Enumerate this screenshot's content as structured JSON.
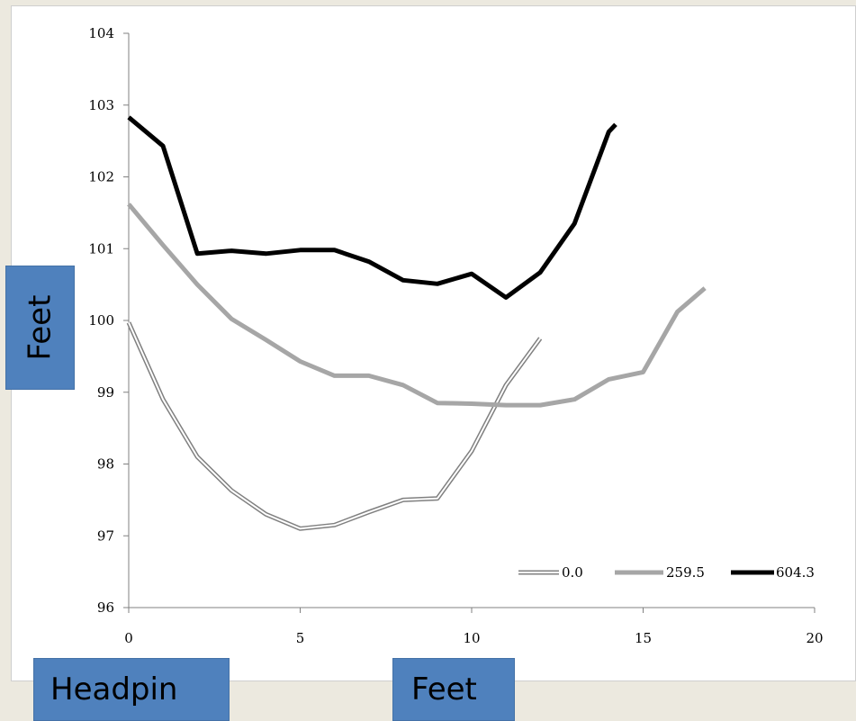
{
  "chart_data": {
    "type": "line",
    "title": "",
    "xlabel": "Feet",
    "ylabel": "Feet",
    "xlim": [
      0,
      20
    ],
    "ylim": [
      96,
      104
    ],
    "xticks": [
      0,
      5,
      10,
      15,
      20
    ],
    "yticks": [
      96,
      97,
      98,
      99,
      100,
      101,
      102,
      103,
      104
    ],
    "grid": false,
    "legend_position": "bottom-right",
    "series": [
      {
        "name": "0.0",
        "style": "double",
        "color": "#808080",
        "x": [
          0,
          1,
          2,
          3,
          4,
          5,
          6,
          7,
          8,
          9,
          10,
          11,
          12
        ],
        "y": [
          99.97,
          98.9,
          98.1,
          97.63,
          97.3,
          97.1,
          97.15,
          97.33,
          97.5,
          97.52,
          98.18,
          99.1,
          99.75
        ]
      },
      {
        "name": "259.5",
        "style": "solid",
        "color": "#a6a6a6",
        "x": [
          0,
          1,
          2,
          3,
          4,
          5,
          6,
          7,
          8,
          9,
          10,
          11,
          12,
          13,
          14,
          15,
          16,
          16.8
        ],
        "y": [
          101.62,
          101.05,
          100.5,
          100.02,
          99.73,
          99.43,
          99.23,
          99.23,
          99.1,
          98.85,
          98.84,
          98.82,
          98.82,
          98.9,
          99.18,
          99.28,
          100.12,
          100.45
        ]
      },
      {
        "name": "604.3",
        "style": "solid",
        "color": "#000000",
        "x": [
          0,
          1,
          2,
          3,
          4,
          5,
          6,
          7,
          8,
          9,
          10,
          11,
          12,
          13,
          14,
          14.2
        ],
        "y": [
          102.83,
          102.43,
          100.93,
          100.97,
          100.93,
          100.98,
          100.98,
          100.82,
          100.56,
          100.51,
          100.65,
          100.32,
          100.67,
          101.35,
          102.63,
          102.73
        ]
      }
    ]
  },
  "callouts": {
    "ylabel": "Feet",
    "headpin": "Headpin",
    "xlabel": "Feet"
  }
}
